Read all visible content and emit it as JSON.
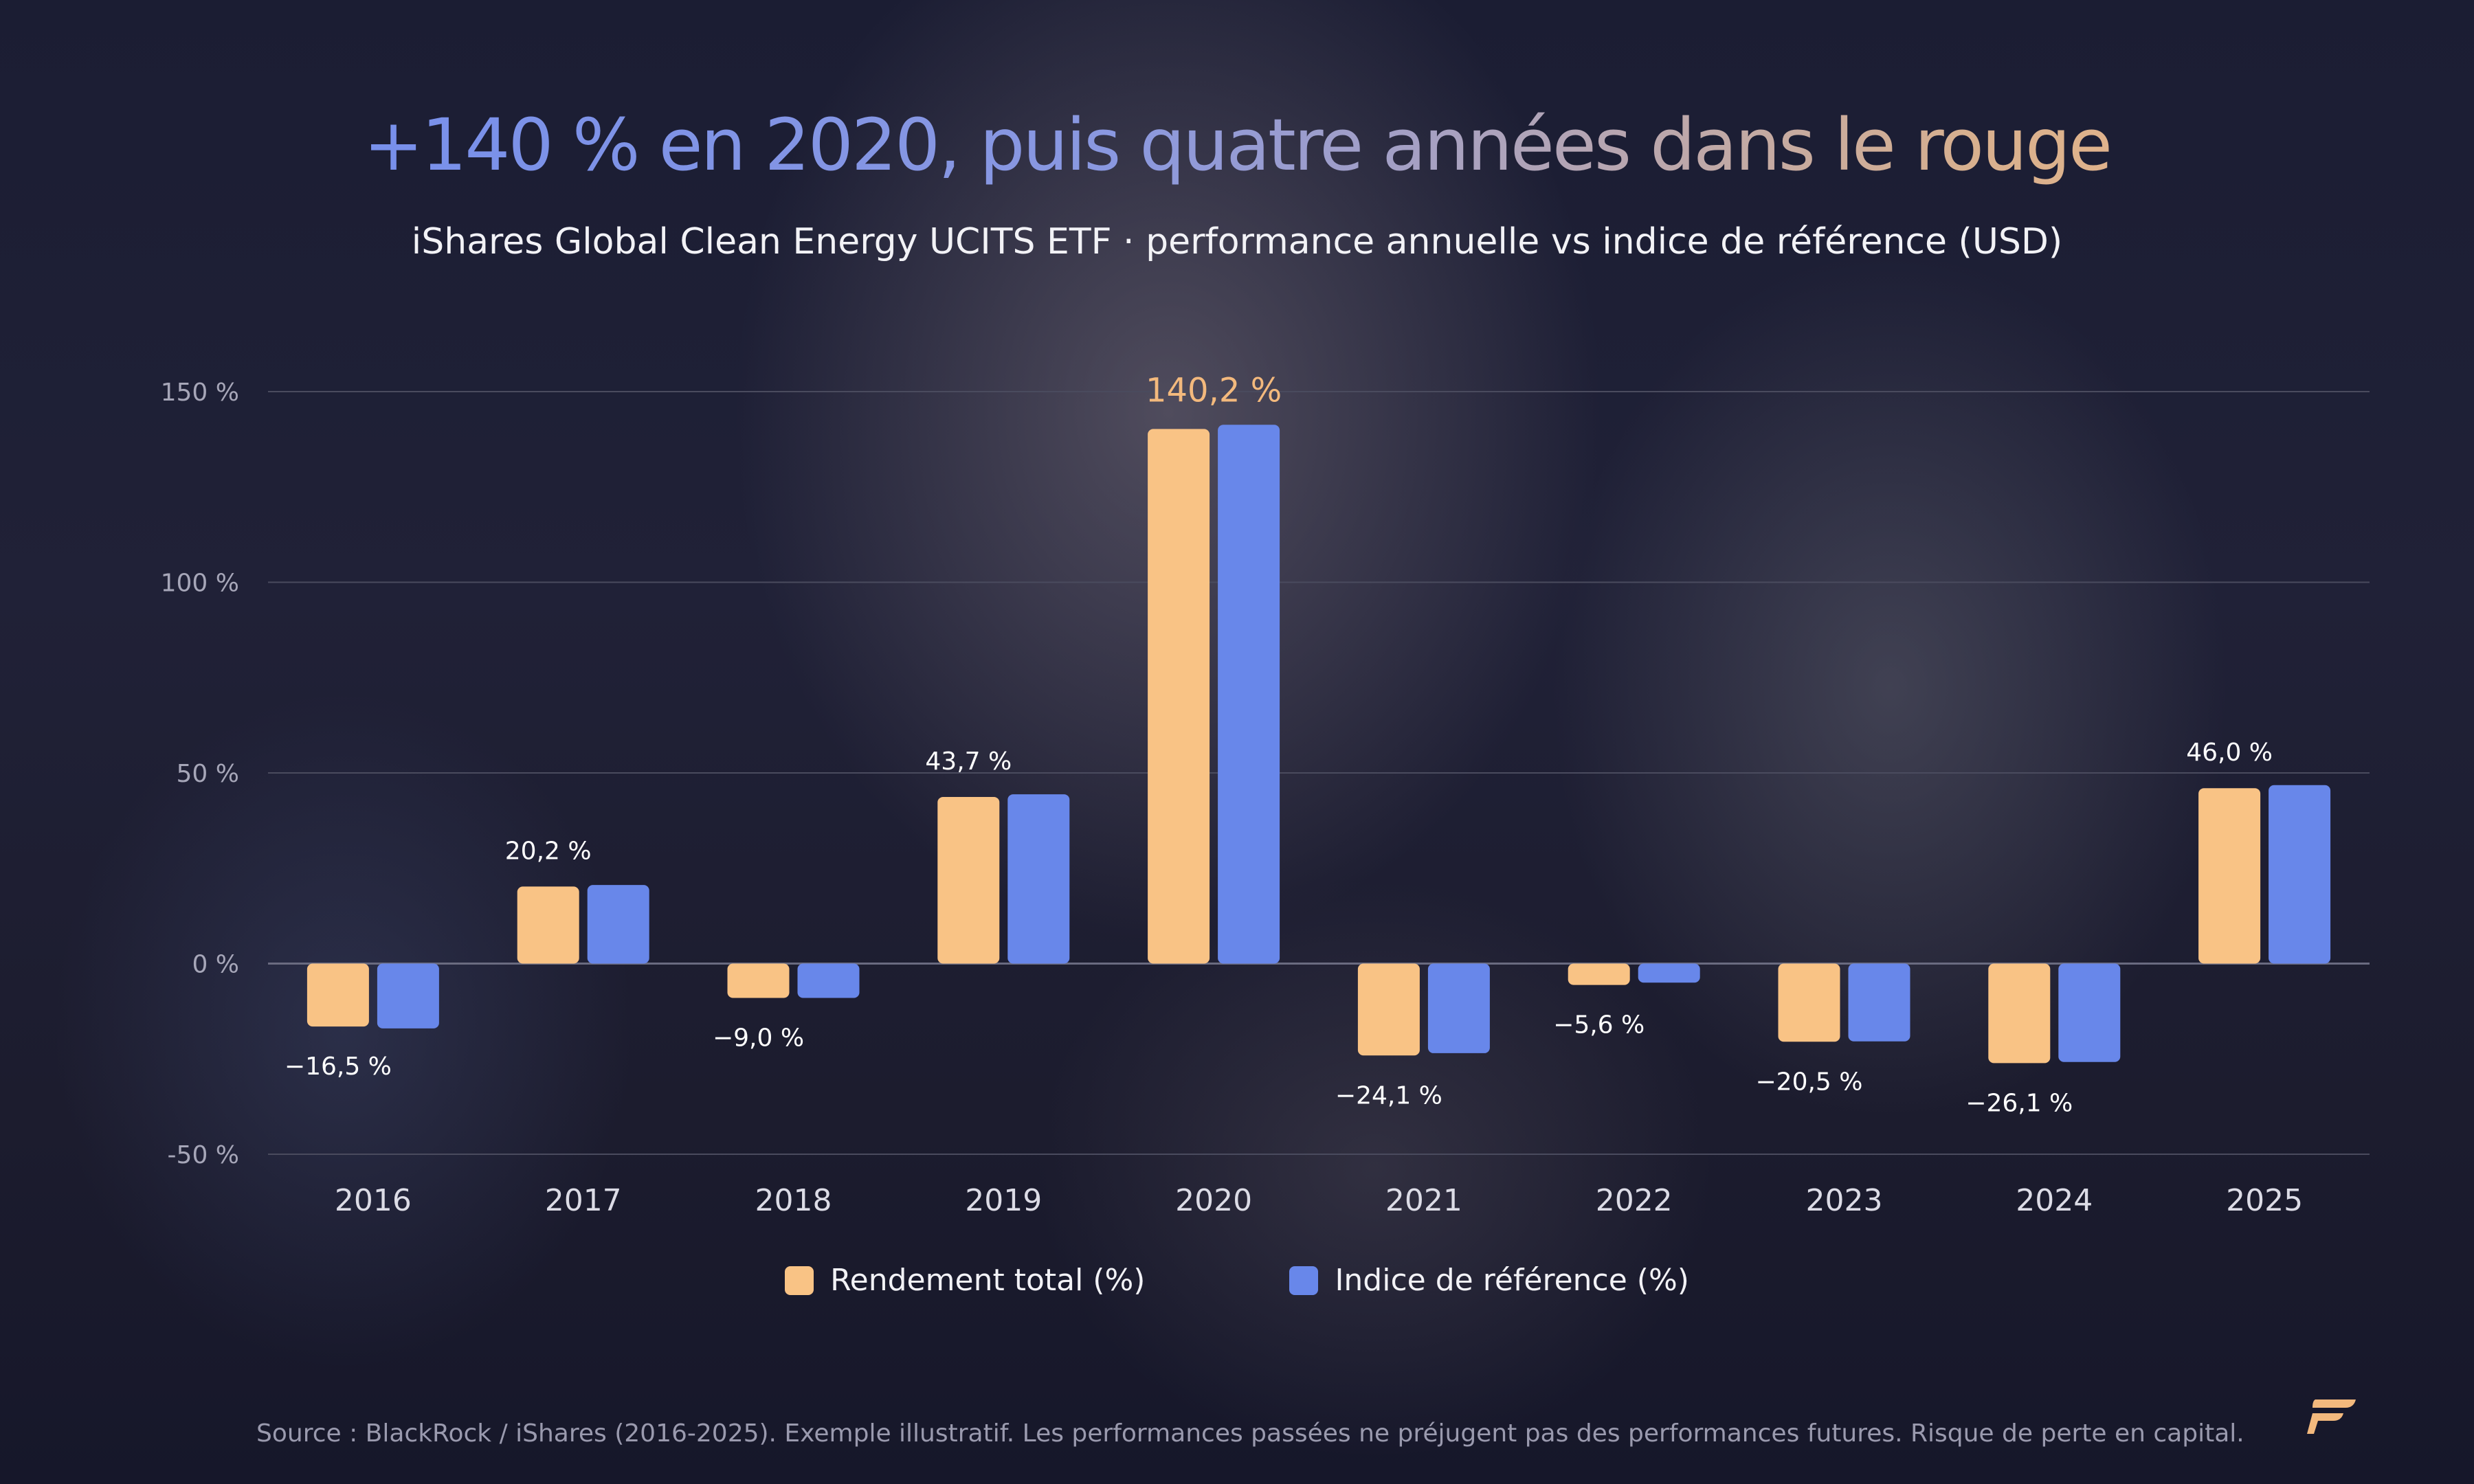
{
  "header": {
    "title": "+140 % en 2020, puis quatre années dans le rouge",
    "subtitle": "iShares Global Clean Energy UCITS ETF · performance annuelle vs indice de référence (USD)"
  },
  "legend": {
    "series_a": "Rendement total (%)",
    "series_b": "Indice de référence (%)"
  },
  "footer": {
    "source": "Source : BlackRock / iShares (2016-2025). Exemple illustratif. Les performances passées ne préjugent pas des performances futures. Risque de perte en capital."
  },
  "logo_icon": "flag-logo-icon",
  "colors": {
    "series_a": "#f9c385",
    "series_b": "#6887ea",
    "highlight_label": "#f3b97d",
    "label": "#ffffff",
    "tick": "#a6a6b8",
    "grid": "#4a4b5e"
  },
  "chart_data": {
    "type": "bar",
    "categories": [
      "2016",
      "2017",
      "2018",
      "2019",
      "2020",
      "2021",
      "2022",
      "2023",
      "2024",
      "2025"
    ],
    "series": [
      {
        "name": "Rendement total (%)",
        "values": [
          -16.5,
          20.2,
          -9.0,
          43.7,
          140.2,
          -24.1,
          -5.6,
          -20.5,
          -26.1,
          46.0
        ]
      },
      {
        "name": "Indice de référence (%)",
        "values": [
          -17.0,
          20.6,
          -9.0,
          44.4,
          141.3,
          -23.5,
          -5.0,
          -20.4,
          -25.8,
          46.8
        ]
      }
    ],
    "data_labels": [
      "-16,5 %",
      "20,2 %",
      "-9,0 %",
      "43,7 %",
      "140,2 %",
      "-24,1 %",
      "-5,6 %",
      "-20,5 %",
      "-26,1 %",
      "46,0 %"
    ],
    "y_ticks": [
      150,
      100,
      50,
      0,
      -50
    ],
    "y_tick_labels": [
      "150 %",
      "100 %",
      "50 %",
      "0 %",
      "-50 %"
    ],
    "ylim": [
      -50,
      150
    ],
    "highlight_index": 4,
    "grid": true,
    "legend_position": "bottom-center"
  }
}
